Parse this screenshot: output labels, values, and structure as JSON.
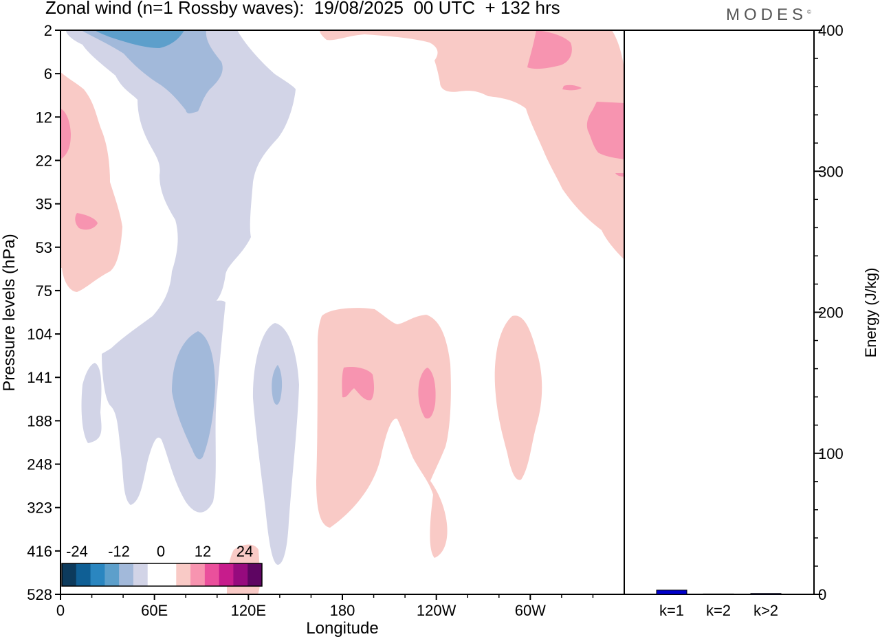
{
  "header": {
    "title": "Zonal wind (n=1 Rossby waves):  19/08/2025  00 UTC  + 132 hrs",
    "logo": "MODES"
  },
  "chart_data": [
    {
      "type": "heatmap",
      "title": "Zonal wind (n=1 Rossby waves):  19/08/2025  00 UTC  + 132 hrs",
      "xlabel": "Longitude",
      "ylabel": "Pressure levels (hPa)",
      "x_ticks": [
        "0",
        "60E",
        "120E",
        "180",
        "120W",
        "60W"
      ],
      "y_ticks": [
        "2",
        "6",
        "12",
        "22",
        "35",
        "53",
        "75",
        "104",
        "141",
        "188",
        "248",
        "323",
        "416",
        "528"
      ],
      "colorbar": {
        "labels": [
          "-24",
          "-12",
          "0",
          "12",
          "24"
        ],
        "colors": [
          "#0c3a5c",
          "#0f5f95",
          "#2a86c0",
          "#5d9fcb",
          "#a2b9da",
          "#d2d4e7",
          "#ffffff",
          "#ffffff",
          "#f9cac6",
          "#f794b0",
          "#ea509c",
          "#c71c8c",
          "#960a7e",
          "#5e0562"
        ]
      },
      "legend": "bottom-left",
      "grid": false
    },
    {
      "type": "bar",
      "categories": [
        "k=1",
        "k=2",
        "k>2"
      ],
      "values": [
        3,
        0.3,
        0.6
      ],
      "ylabel": "Energy (J/kg)",
      "ylim": [
        0,
        400
      ],
      "y_ticks": [
        "0",
        "100",
        "200",
        "300",
        "400"
      ],
      "bar_color": "#0000cc"
    }
  ]
}
